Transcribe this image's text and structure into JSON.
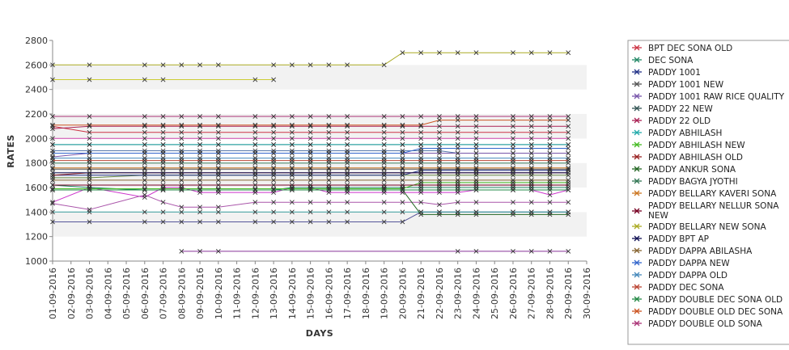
{
  "chart_data": {
    "type": "line",
    "title": "",
    "xlabel": "DAYS",
    "ylabel": "RATES",
    "ylim": [
      1000,
      2800
    ],
    "yticks": [
      1000,
      1200,
      1400,
      1600,
      1800,
      2000,
      2200,
      2400,
      2600,
      2800
    ],
    "grid": "horizontal bands",
    "legend_position": "right",
    "categories": [
      "01-09-2016",
      "02-09-2016",
      "03-09-2016",
      "04-09-2016",
      "05-09-2016",
      "06-09-2016",
      "07-09-2016",
      "08-09-2016",
      "09-09-2016",
      "10-09-2016",
      "11-09-2016",
      "12-09-2016",
      "13-09-2016",
      "14-09-2016",
      "15-09-2016",
      "16-09-2016",
      "17-09-2016",
      "18-09-2016",
      "19-09-2016",
      "20-09-2016",
      "21-09-2016",
      "22-09-2016",
      "23-09-2016",
      "24-09-2016",
      "25-09-2016",
      "26-09-2016",
      "27-09-2016",
      "28-09-2016",
      "29-09-2016",
      "30-09-2016"
    ],
    "series": [
      {
        "name": "BPT DEC SONA OLD",
        "color": "#cc3344",
        "values": [
          2100,
          null,
          2050,
          null,
          null,
          2050,
          2050,
          2050,
          2050,
          2050,
          null,
          2050,
          2050,
          2050,
          2050,
          2050,
          2050,
          null,
          2050,
          2050,
          2050,
          2050,
          2050,
          2050,
          null,
          2050,
          2050,
          2050,
          2050,
          null
        ]
      },
      {
        "name": "DEC SONA",
        "color": "#228866",
        "values": [
          1620,
          null,
          1600,
          null,
          null,
          1580,
          1580,
          1580,
          1580,
          1580,
          null,
          1580,
          1580,
          1600,
          1600,
          1600,
          1600,
          null,
          1600,
          1600,
          1600,
          1600,
          1600,
          1600,
          null,
          1600,
          1600,
          1600,
          1600,
          null
        ]
      },
      {
        "name": "PADDY 1001",
        "color": "#223388",
        "values": [
          1700,
          null,
          1700,
          null,
          null,
          1700,
          1700,
          1700,
          1700,
          1700,
          null,
          1700,
          1700,
          1700,
          1700,
          1700,
          1700,
          null,
          1700,
          1700,
          1740,
          1740,
          1740,
          1740,
          null,
          1740,
          1740,
          1740,
          1740,
          null
        ]
      },
      {
        "name": "PADDY 1001 NEW",
        "color": "#555555",
        "values": [
          1750,
          null,
          1750,
          null,
          null,
          1750,
          1750,
          1750,
          1750,
          1750,
          null,
          1750,
          1750,
          1750,
          1750,
          1750,
          1750,
          null,
          1750,
          1750,
          1750,
          1750,
          1750,
          1750,
          null,
          1750,
          1750,
          1750,
          1750,
          null
        ]
      },
      {
        "name": "PADDY 1001 RAW RICE QUALITY",
        "color": "#7755aa",
        "values": [
          1850,
          null,
          1880,
          null,
          null,
          1880,
          1880,
          1880,
          1880,
          1880,
          null,
          1880,
          1880,
          1880,
          1880,
          1880,
          1880,
          null,
          1880,
          1880,
          1880,
          1880,
          1880,
          1880,
          null,
          1880,
          1880,
          1880,
          1880,
          null
        ]
      },
      {
        "name": "PADDY 22 NEW",
        "color": "#335555",
        "values": [
          1950,
          null,
          1950,
          null,
          null,
          1950,
          1950,
          1950,
          1950,
          1950,
          null,
          1950,
          1950,
          1950,
          1950,
          1950,
          1950,
          null,
          1950,
          1950,
          1950,
          1950,
          1950,
          1950,
          null,
          1950,
          1950,
          1950,
          1950,
          null
        ]
      },
      {
        "name": "PADDY 22 OLD",
        "color": "#aa2255",
        "values": [
          2080,
          null,
          2100,
          null,
          null,
          2100,
          2100,
          2100,
          2100,
          2100,
          null,
          2100,
          2100,
          2100,
          2100,
          2100,
          2100,
          null,
          2100,
          2100,
          2100,
          2100,
          2100,
          2100,
          null,
          2100,
          2100,
          2100,
          2100,
          null
        ]
      },
      {
        "name": "PADDY ABHILASH",
        "color": "#22aaaa",
        "values": [
          1950,
          null,
          1950,
          null,
          null,
          1950,
          1950,
          1950,
          1950,
          1950,
          null,
          1950,
          1950,
          1950,
          1950,
          1950,
          1950,
          null,
          1950,
          1950,
          1950,
          1950,
          1950,
          1950,
          null,
          1950,
          1950,
          1950,
          1950,
          null
        ]
      },
      {
        "name": "PADDY ABHILASH NEW",
        "color": "#44bb22",
        "values": [
          1590,
          null,
          1590,
          null,
          null,
          1590,
          1590,
          1590,
          1590,
          1590,
          null,
          1590,
          1590,
          1590,
          1590,
          1590,
          1590,
          null,
          1590,
          1590,
          1640,
          1640,
          1640,
          1640,
          null,
          1640,
          1640,
          1640,
          1640,
          null
        ]
      },
      {
        "name": "PADDY ABHILASH OLD",
        "color": "#992222",
        "values": [
          1700,
          null,
          1720,
          null,
          null,
          1720,
          1720,
          1720,
          1720,
          1720,
          null,
          1720,
          1720,
          1720,
          1720,
          1720,
          1720,
          null,
          1720,
          1720,
          1720,
          1720,
          1720,
          1720,
          null,
          1720,
          1720,
          1720,
          1720,
          null
        ]
      },
      {
        "name": "PADDY ANKUR SONA",
        "color": "#226622",
        "values": [
          1580,
          null,
          1580,
          null,
          null,
          1580,
          1580,
          1580,
          1580,
          1580,
          null,
          1580,
          1580,
          1580,
          1580,
          1580,
          1580,
          null,
          1580,
          1580,
          1380,
          1380,
          1380,
          1380,
          null,
          1380,
          1380,
          1380,
          1380,
          null
        ]
      },
      {
        "name": "PADDY BAGYA JYOTHI",
        "color": "#337755",
        "values": [
          1800,
          null,
          1800,
          null,
          null,
          1800,
          1800,
          1800,
          1800,
          1800,
          null,
          1800,
          1800,
          1800,
          1800,
          1800,
          1800,
          null,
          1800,
          1800,
          1800,
          1800,
          1800,
          1800,
          null,
          1800,
          1800,
          1800,
          1800,
          null
        ]
      },
      {
        "name": "PADDY BELLARY KAVERI SONA",
        "color": "#cc7722",
        "values": [
          1760,
          null,
          1760,
          null,
          null,
          1760,
          1760,
          1760,
          1760,
          1760,
          null,
          1760,
          1760,
          1760,
          1760,
          1760,
          1760,
          null,
          1760,
          1760,
          1760,
          1760,
          1760,
          1760,
          null,
          1760,
          1760,
          1760,
          1760,
          null
        ]
      },
      {
        "name": "PADDY BELLARY NELLUR SONA NEW",
        "color": "#770022",
        "values": [
          1620,
          null,
          1620,
          null,
          null,
          1620,
          1620,
          1620,
          1620,
          1620,
          null,
          1620,
          1620,
          1620,
          1620,
          1620,
          1620,
          null,
          1620,
          1620,
          1620,
          1620,
          1620,
          1620,
          null,
          1620,
          1620,
          1620,
          1620,
          null
        ]
      },
      {
        "name": "PADDY BELLARY NEW SONA",
        "color": "#aaaa22",
        "values": [
          2600,
          null,
          2600,
          null,
          null,
          2600,
          2600,
          2600,
          2600,
          2600,
          null,
          null,
          2600,
          2600,
          2600,
          2600,
          2600,
          null,
          2600,
          2700,
          2700,
          2700,
          2700,
          2700,
          null,
          2700,
          2700,
          2700,
          2700,
          null
        ]
      },
      {
        "name": "PADDY BPT AP",
        "color": "#111155",
        "values": [
          1720,
          null,
          1720,
          null,
          null,
          1720,
          1720,
          1720,
          1720,
          1720,
          null,
          1720,
          1720,
          1720,
          1720,
          1720,
          1720,
          null,
          1720,
          1720,
          1720,
          1720,
          1720,
          1720,
          null,
          1720,
          1720,
          1720,
          1720,
          null
        ]
      },
      {
        "name": "PADDY DAPPA ABILASHA",
        "color": "#886633",
        "values": [
          1660,
          null,
          1660,
          null,
          null,
          1660,
          1660,
          1660,
          1660,
          1660,
          null,
          1660,
          1660,
          1660,
          1660,
          1660,
          1660,
          null,
          1660,
          1660,
          1660,
          1660,
          1660,
          1660,
          null,
          1660,
          1660,
          1660,
          1660,
          null
        ]
      },
      {
        "name": "PADDY DAPPA NEW",
        "color": "#3366cc",
        "values": [
          1880,
          null,
          1880,
          null,
          null,
          1880,
          1880,
          1880,
          1880,
          1880,
          null,
          1880,
          1880,
          1880,
          1880,
          1880,
          1880,
          null,
          1880,
          1880,
          1920,
          1920,
          1920,
          1920,
          null,
          1920,
          1920,
          1920,
          1920,
          null
        ]
      },
      {
        "name": "PADDY DAPPA OLD",
        "color": "#4488bb",
        "values": [
          1840,
          null,
          1840,
          null,
          null,
          1840,
          1840,
          1840,
          1840,
          1840,
          null,
          1840,
          1840,
          1840,
          1840,
          1840,
          1840,
          null,
          1840,
          1840,
          1840,
          1840,
          1840,
          1840,
          null,
          1840,
          1840,
          1840,
          1840,
          null
        ]
      },
      {
        "name": "PADDY DEC SONA",
        "color": "#bb4433",
        "values": [
          1820,
          null,
          1820,
          null,
          null,
          1820,
          1820,
          1820,
          1820,
          1820,
          null,
          1820,
          1820,
          1820,
          1820,
          1820,
          1820,
          null,
          1820,
          1820,
          1820,
          1820,
          1820,
          1820,
          null,
          1820,
          1820,
          1820,
          1820,
          null
        ]
      },
      {
        "name": "PADDY DOUBLE DEC SONA OLD",
        "color": "#228844",
        "values": [
          1580,
          null,
          1580,
          null,
          null,
          1580,
          1580,
          1580,
          1580,
          1580,
          null,
          1580,
          1580,
          1580,
          1580,
          1580,
          1580,
          null,
          1580,
          1580,
          1580,
          1580,
          1580,
          1580,
          null,
          1580,
          1580,
          1580,
          1580,
          null
        ]
      },
      {
        "name": "PADDY DOUBLE OLD DEC SONA",
        "color": "#cc5522",
        "values": [
          2110,
          null,
          2110,
          null,
          null,
          2110,
          2110,
          2110,
          2110,
          2110,
          null,
          2110,
          2110,
          2110,
          2110,
          2110,
          2110,
          null,
          2110,
          2110,
          2110,
          2150,
          2150,
          2150,
          null,
          2150,
          2150,
          2150,
          2150,
          null
        ]
      },
      {
        "name": "PADDY DOUBLE OLD SONA",
        "color": "#aa3377",
        "values": [
          2180,
          null,
          2180,
          null,
          null,
          2180,
          2180,
          2180,
          2180,
          2180,
          null,
          2180,
          2180,
          2180,
          2180,
          2180,
          2180,
          null,
          2180,
          2180,
          2180,
          2180,
          2180,
          2180,
          null,
          2180,
          2180,
          2180,
          2180,
          null
        ]
      }
    ],
    "background_series": [
      {
        "color": "#cccc33",
        "values": [
          2480,
          null,
          2480,
          null,
          null,
          2480,
          2480,
          null,
          null,
          null,
          null,
          2480,
          2480,
          null,
          null,
          null,
          null,
          null,
          null,
          null,
          null,
          null,
          null,
          null,
          null,
          null,
          null,
          null,
          null,
          null
        ]
      },
      {
        "color": "#cc33cc",
        "values": [
          1480,
          null,
          1600,
          null,
          null,
          1520,
          1600,
          1600,
          1560,
          1560,
          null,
          1560,
          1560,
          1600,
          1600,
          1560,
          1560,
          null,
          1560,
          1560,
          1560,
          1560,
          1560,
          1580,
          null,
          1580,
          1580,
          1540,
          1580,
          null
        ]
      },
      {
        "color": "#aa55aa",
        "values": [
          1470,
          null,
          1420,
          null,
          null,
          1540,
          1480,
          1440,
          1440,
          1440,
          null,
          1480,
          1480,
          1480,
          1480,
          1480,
          1480,
          null,
          1480,
          1480,
          1480,
          1460,
          1480,
          1480,
          null,
          1480,
          1480,
          1480,
          1480,
          null
        ]
      },
      {
        "color": "#883399",
        "values": [
          null,
          null,
          null,
          null,
          null,
          null,
          null,
          1080,
          1080,
          1080,
          null,
          null,
          null,
          null,
          null,
          null,
          null,
          null,
          null,
          null,
          null,
          null,
          1080,
          1080,
          null,
          1080,
          1080,
          1080,
          1080,
          null
        ]
      },
      {
        "color": "#555599",
        "values": [
          1320,
          null,
          1320,
          null,
          null,
          1320,
          1320,
          1320,
          1320,
          1320,
          null,
          1320,
          1320,
          1320,
          1320,
          1320,
          1320,
          null,
          1320,
          1320,
          1400,
          1400,
          1400,
          1400,
          null,
          1400,
          1400,
          1400,
          1400,
          null
        ]
      },
      {
        "color": "#339999",
        "values": [
          1400,
          null,
          1400,
          null,
          null,
          1400,
          1400,
          1400,
          1400,
          1400,
          null,
          1400,
          1400,
          1400,
          1400,
          1400,
          1400,
          null,
          1400,
          1400,
          1400,
          1400,
          1400,
          1400,
          null,
          1400,
          1400,
          1400,
          1400,
          null
        ]
      },
      {
        "color": "#cc44aa",
        "values": [
          2000,
          null,
          2000,
          null,
          null,
          2000,
          2000,
          2000,
          2000,
          2000,
          null,
          2000,
          2000,
          2000,
          2000,
          2000,
          2000,
          null,
          2000,
          2000,
          2000,
          2000,
          2000,
          2000,
          null,
          2000,
          2000,
          2000,
          2000,
          null
        ]
      },
      {
        "color": "#5577aa",
        "values": [
          1900,
          null,
          1900,
          null,
          null,
          1900,
          1900,
          1900,
          1900,
          1900,
          null,
          1900,
          1900,
          1900,
          1900,
          1900,
          1900,
          null,
          1900,
          1900,
          1900,
          1900,
          1880,
          1880,
          null,
          1880,
          1880,
          1880,
          1880,
          null
        ]
      },
      {
        "color": "#668844",
        "values": [
          1680,
          null,
          1680,
          null,
          null,
          1700,
          1700,
          1700,
          1700,
          1700,
          null,
          1700,
          1700,
          1700,
          1700,
          1700,
          1700,
          null,
          1700,
          1700,
          1700,
          1700,
          1700,
          1700,
          null,
          1700,
          1700,
          1700,
          1700,
          null
        ]
      }
    ]
  }
}
